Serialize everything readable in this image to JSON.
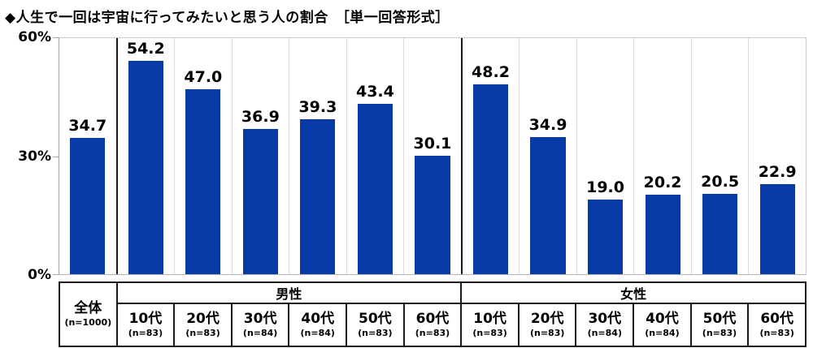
{
  "page": {
    "title": "◆人生で一回は宇宙に行ってみたいと思う人の割合　［単一回答形式］"
  },
  "colors": {
    "bar": "#0a3aa5",
    "column_grid": "#dcdcdc",
    "axis": "#a6a6a6",
    "group_divider": "#1a1a1a",
    "table_border": "#1a1a1a",
    "text": "#000000"
  },
  "chart_data": {
    "type": "bar",
    "title": "人生で一回は宇宙に行ってみたいと思う人の割合",
    "answer_format": "単一回答形式",
    "ylim": [
      0,
      60
    ],
    "grid": false,
    "yticks": [
      {
        "value": 60,
        "label": "60%"
      },
      {
        "value": 30,
        "label": "30%"
      },
      {
        "value": 0,
        "label": "0%"
      }
    ],
    "groups": [
      {
        "label": "全体",
        "span": 1
      },
      {
        "label": "男性",
        "span": 6
      },
      {
        "label": "女性",
        "span": 6
      }
    ],
    "columns": [
      {
        "group": "全体",
        "label": "全体",
        "n": "(n=1000)",
        "value": 34.7
      },
      {
        "group": "男性",
        "label": "10代",
        "n": "(n=83)",
        "value": 54.2
      },
      {
        "group": "男性",
        "label": "20代",
        "n": "(n=83)",
        "value": 47.0
      },
      {
        "group": "男性",
        "label": "30代",
        "n": "(n=84)",
        "value": 36.9
      },
      {
        "group": "男性",
        "label": "40代",
        "n": "(n=84)",
        "value": 39.3
      },
      {
        "group": "男性",
        "label": "50代",
        "n": "(n=83)",
        "value": 43.4
      },
      {
        "group": "男性",
        "label": "60代",
        "n": "(n=83)",
        "value": 30.1
      },
      {
        "group": "女性",
        "label": "10代",
        "n": "(n=83)",
        "value": 48.2
      },
      {
        "group": "女性",
        "label": "20代",
        "n": "(n=83)",
        "value": 34.9
      },
      {
        "group": "女性",
        "label": "30代",
        "n": "(n=84)",
        "value": 19.0
      },
      {
        "group": "女性",
        "label": "40代",
        "n": "(n=84)",
        "value": 20.2
      },
      {
        "group": "女性",
        "label": "50代",
        "n": "(n=83)",
        "value": 20.5
      },
      {
        "group": "女性",
        "label": "60代",
        "n": "(n=83)",
        "value": 22.9
      }
    ]
  }
}
